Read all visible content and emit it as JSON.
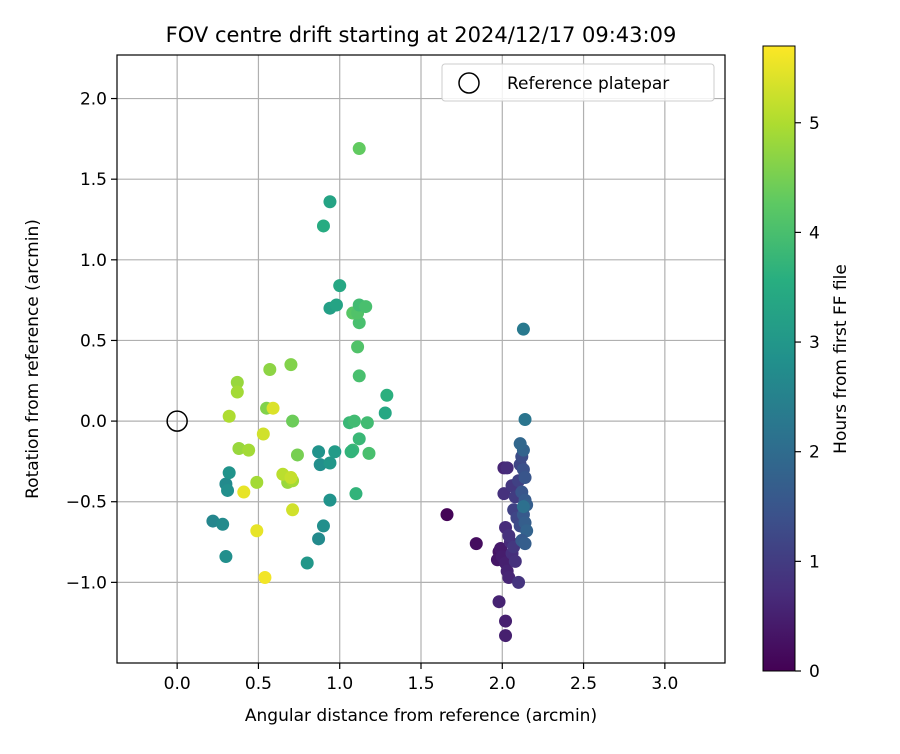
{
  "chart_data": {
    "type": "scatter",
    "title": "FOV centre drift starting at 2024/12/17 09:43:09",
    "xlabel": "Angular distance from reference (arcmin)",
    "ylabel": "Rotation from reference (arcmin)",
    "xlim": [
      -0.37,
      3.37
    ],
    "ylim": [
      -1.5,
      2.27
    ],
    "xticks": [
      0.0,
      0.5,
      1.0,
      1.5,
      2.0,
      2.5,
      3.0
    ],
    "xtick_labels": [
      "0.0",
      "0.5",
      "1.0",
      "1.5",
      "2.0",
      "2.5",
      "3.0"
    ],
    "yticks": [
      -1.0,
      -0.5,
      0.0,
      0.5,
      1.0,
      1.5,
      2.0
    ],
    "ytick_labels": [
      "−1.0",
      "−0.5",
      "0.0",
      "0.5",
      "1.0",
      "1.5",
      "2.0"
    ],
    "grid": true,
    "legend": {
      "position": "top-right",
      "entries": [
        {
          "label": "Reference platepar",
          "marker": "open-circle"
        }
      ]
    },
    "reference_point": {
      "x": 0.0,
      "y": 0.0
    },
    "colorbar": {
      "label": "Hours from first FF file",
      "colormap": "viridis",
      "range": [
        0,
        5.7
      ],
      "ticks": [
        0,
        1,
        2,
        3,
        4,
        5
      ],
      "tick_labels": [
        "0",
        "1",
        "2",
        "3",
        "4",
        "5"
      ]
    },
    "points": [
      {
        "x": 1.66,
        "y": -0.58,
        "c": 0.05
      },
      {
        "x": 1.84,
        "y": -0.76,
        "c": 0.2
      },
      {
        "x": 1.98,
        "y": -0.81,
        "c": 0.3
      },
      {
        "x": 1.97,
        "y": -0.86,
        "c": 0.35
      },
      {
        "x": 1.99,
        "y": -0.79,
        "c": 0.4
      },
      {
        "x": 2.0,
        "y": -0.84,
        "c": 0.45
      },
      {
        "x": 2.02,
        "y": -0.88,
        "c": 0.5
      },
      {
        "x": 2.03,
        "y": -0.93,
        "c": 0.55
      },
      {
        "x": 2.04,
        "y": -0.97,
        "c": 0.6
      },
      {
        "x": 1.98,
        "y": -1.12,
        "c": 0.55
      },
      {
        "x": 2.02,
        "y": -1.24,
        "c": 0.5
      },
      {
        "x": 2.02,
        "y": -1.33,
        "c": 0.5
      },
      {
        "x": 2.05,
        "y": -0.75,
        "c": 0.7
      },
      {
        "x": 2.06,
        "y": -0.82,
        "c": 0.75
      },
      {
        "x": 2.08,
        "y": -0.87,
        "c": 0.8
      },
      {
        "x": 2.1,
        "y": -1.0,
        "c": 0.85
      },
      {
        "x": 2.02,
        "y": -0.66,
        "c": 0.7
      },
      {
        "x": 2.04,
        "y": -0.71,
        "c": 0.8
      },
      {
        "x": 2.07,
        "y": -0.78,
        "c": 0.9
      },
      {
        "x": 2.01,
        "y": -0.45,
        "c": 0.8
      },
      {
        "x": 2.01,
        "y": -0.29,
        "c": 0.6
      },
      {
        "x": 2.03,
        "y": -0.29,
        "c": 0.7
      },
      {
        "x": 2.06,
        "y": -0.4,
        "c": 0.9
      },
      {
        "x": 2.08,
        "y": -0.47,
        "c": 1.0
      },
      {
        "x": 2.07,
        "y": -0.55,
        "c": 1.1
      },
      {
        "x": 2.09,
        "y": -0.6,
        "c": 1.2
      },
      {
        "x": 2.11,
        "y": -0.65,
        "c": 1.3
      },
      {
        "x": 2.1,
        "y": -0.37,
        "c": 1.1
      },
      {
        "x": 2.11,
        "y": -0.27,
        "c": 1.2
      },
      {
        "x": 2.12,
        "y": -0.22,
        "c": 1.3
      },
      {
        "x": 2.13,
        "y": -0.3,
        "c": 1.4
      },
      {
        "x": 2.14,
        "y": -0.35,
        "c": 1.5
      },
      {
        "x": 2.12,
        "y": -0.44,
        "c": 1.5
      },
      {
        "x": 2.14,
        "y": -0.49,
        "c": 1.6
      },
      {
        "x": 2.15,
        "y": -0.52,
        "c": 1.7
      },
      {
        "x": 2.13,
        "y": -0.58,
        "c": 1.6
      },
      {
        "x": 2.14,
        "y": -0.63,
        "c": 1.7
      },
      {
        "x": 2.15,
        "y": -0.68,
        "c": 1.8
      },
      {
        "x": 2.12,
        "y": -0.74,
        "c": 1.6
      },
      {
        "x": 2.14,
        "y": -0.76,
        "c": 1.7
      },
      {
        "x": 2.13,
        "y": -0.18,
        "c": 1.8
      },
      {
        "x": 2.11,
        "y": -0.14,
        "c": 1.9
      },
      {
        "x": 2.13,
        "y": -0.53,
        "c": 2.1
      },
      {
        "x": 2.14,
        "y": 0.01,
        "c": 2.2
      },
      {
        "x": 2.13,
        "y": 0.57,
        "c": 2.3
      },
      {
        "x": 0.22,
        "y": -0.62,
        "c": 2.6
      },
      {
        "x": 0.28,
        "y": -0.64,
        "c": 2.7
      },
      {
        "x": 0.3,
        "y": -0.84,
        "c": 2.8
      },
      {
        "x": 0.3,
        "y": -0.39,
        "c": 2.7
      },
      {
        "x": 0.31,
        "y": -0.43,
        "c": 2.8
      },
      {
        "x": 0.32,
        "y": -0.32,
        "c": 2.9
      },
      {
        "x": 0.8,
        "y": -0.88,
        "c": 3.0
      },
      {
        "x": 0.87,
        "y": -0.73,
        "c": 2.7
      },
      {
        "x": 0.9,
        "y": -0.65,
        "c": 2.8
      },
      {
        "x": 0.94,
        "y": -0.49,
        "c": 2.9
      },
      {
        "x": 0.88,
        "y": -0.27,
        "c": 2.8
      },
      {
        "x": 0.87,
        "y": -0.19,
        "c": 2.9
      },
      {
        "x": 0.94,
        "y": -0.26,
        "c": 3.0
      },
      {
        "x": 0.97,
        "y": -0.19,
        "c": 3.1
      },
      {
        "x": 0.94,
        "y": 0.7,
        "c": 3.2
      },
      {
        "x": 0.98,
        "y": 0.72,
        "c": 3.3
      },
      {
        "x": 1.0,
        "y": 0.84,
        "c": 3.4
      },
      {
        "x": 0.9,
        "y": 1.21,
        "c": 3.5
      },
      {
        "x": 0.94,
        "y": 1.36,
        "c": 3.3
      },
      {
        "x": 1.28,
        "y": 0.05,
        "c": 3.4
      },
      {
        "x": 1.29,
        "y": 0.16,
        "c": 3.6
      },
      {
        "x": 1.1,
        "y": -0.45,
        "c": 3.7
      },
      {
        "x": 1.06,
        "y": -0.01,
        "c": 3.8
      },
      {
        "x": 1.09,
        "y": 0.0,
        "c": 3.9
      },
      {
        "x": 1.08,
        "y": -0.18,
        "c": 3.8
      },
      {
        "x": 1.07,
        "y": -0.19,
        "c": 3.7
      },
      {
        "x": 1.12,
        "y": -0.11,
        "c": 3.8
      },
      {
        "x": 1.17,
        "y": -0.01,
        "c": 3.9
      },
      {
        "x": 1.18,
        "y": -0.2,
        "c": 4.0
      },
      {
        "x": 1.12,
        "y": 0.28,
        "c": 4.0
      },
      {
        "x": 1.11,
        "y": 0.46,
        "c": 4.1
      },
      {
        "x": 1.12,
        "y": 0.61,
        "c": 4.0
      },
      {
        "x": 1.08,
        "y": 0.67,
        "c": 4.2
      },
      {
        "x": 1.11,
        "y": 0.67,
        "c": 4.1
      },
      {
        "x": 1.12,
        "y": 0.72,
        "c": 3.9
      },
      {
        "x": 1.16,
        "y": 0.71,
        "c": 4.0
      },
      {
        "x": 1.12,
        "y": 1.69,
        "c": 4.3
      },
      {
        "x": 0.71,
        "y": 0.0,
        "c": 4.4
      },
      {
        "x": 0.74,
        "y": -0.21,
        "c": 4.5
      },
      {
        "x": 0.7,
        "y": 0.35,
        "c": 4.6
      },
      {
        "x": 0.57,
        "y": 0.32,
        "c": 4.7
      },
      {
        "x": 0.55,
        "y": 0.08,
        "c": 4.6
      },
      {
        "x": 0.37,
        "y": 0.24,
        "c": 4.8
      },
      {
        "x": 0.37,
        "y": 0.18,
        "c": 4.9
      },
      {
        "x": 0.32,
        "y": 0.03,
        "c": 5.0
      },
      {
        "x": 0.38,
        "y": -0.17,
        "c": 4.8
      },
      {
        "x": 0.44,
        "y": -0.18,
        "c": 4.9
      },
      {
        "x": 0.49,
        "y": -0.38,
        "c": 4.9
      },
      {
        "x": 0.68,
        "y": -0.38,
        "c": 4.8
      },
      {
        "x": 0.71,
        "y": -0.37,
        "c": 4.9
      },
      {
        "x": 0.65,
        "y": -0.33,
        "c": 5.1
      },
      {
        "x": 0.7,
        "y": -0.35,
        "c": 5.2
      },
      {
        "x": 0.71,
        "y": -0.55,
        "c": 5.3
      },
      {
        "x": 0.59,
        "y": 0.08,
        "c": 5.4
      },
      {
        "x": 0.53,
        "y": -0.08,
        "c": 5.3
      },
      {
        "x": 0.41,
        "y": -0.44,
        "c": 5.5
      },
      {
        "x": 0.49,
        "y": -0.68,
        "c": 5.5
      },
      {
        "x": 0.54,
        "y": -0.97,
        "c": 5.6
      }
    ]
  }
}
